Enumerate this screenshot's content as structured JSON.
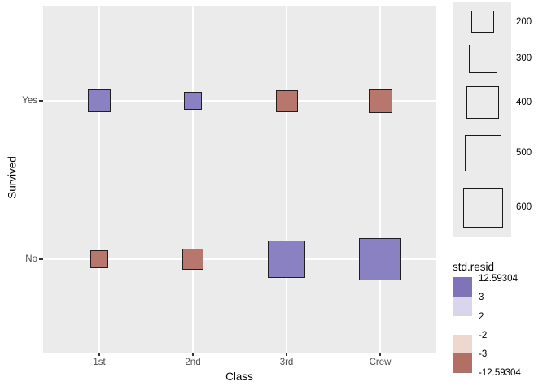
{
  "figure": {
    "background": "#ffffff",
    "panel_background": "#ebebeb",
    "gridline_color": "#ffffff",
    "tick_label_color": "#4d4d4d"
  },
  "chart_data": {
    "type": "scatter",
    "subtype": "categorical-balloon-count-plot",
    "title": "",
    "xlabel": "Class",
    "ylabel": "Survived",
    "x_categories": [
      "1st",
      "2nd",
      "3rd",
      "Crew"
    ],
    "y_categories": [
      "Yes",
      "No"
    ],
    "points": [
      {
        "x": "1st",
        "y": "Yes",
        "count": 203,
        "std_resid_bin": "positive"
      },
      {
        "x": "2nd",
        "y": "Yes",
        "count": 118,
        "std_resid_bin": "positive"
      },
      {
        "x": "3rd",
        "y": "Yes",
        "count": 178,
        "std_resid_bin": "negative"
      },
      {
        "x": "Crew",
        "y": "Yes",
        "count": 212,
        "std_resid_bin": "negative"
      },
      {
        "x": "1st",
        "y": "No",
        "count": 122,
        "std_resid_bin": "negative"
      },
      {
        "x": "2nd",
        "y": "No",
        "count": 167,
        "std_resid_bin": "negative"
      },
      {
        "x": "3rd",
        "y": "No",
        "count": 528,
        "std_resid_bin": "positive"
      },
      {
        "x": "Crew",
        "y": "No",
        "count": 673,
        "std_resid_bin": "positive"
      }
    ],
    "size_encoding": "square side proportional to sqrt(count), side_px = 2*sqrt(count)",
    "point_colors": {
      "positive": "#8981c1",
      "negative": "#b7776c"
    },
    "legends": {
      "size": {
        "values": [
          "200",
          "300",
          "400",
          "500",
          "600"
        ]
      },
      "color": {
        "title": "std.resid",
        "labels": [
          "12.59304",
          "3",
          "2",
          "-2",
          "-3",
          "-12.59304"
        ],
        "bin_colors": [
          "#8073b8",
          "#d9d5ec",
          "#ffffff",
          "#edd7ce",
          "#b27065"
        ]
      }
    }
  }
}
